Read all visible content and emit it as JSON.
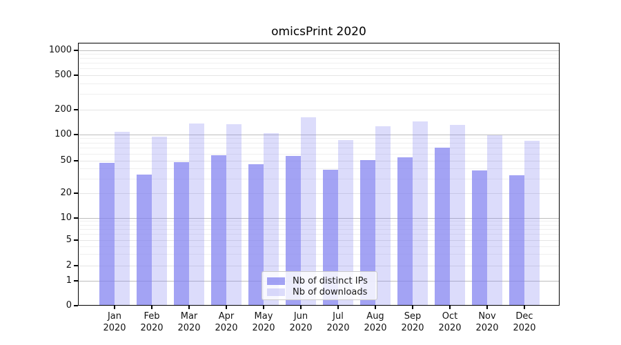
{
  "chart_data": {
    "type": "bar",
    "title": "omicsPrint 2020",
    "categories": [
      "Jan 2020",
      "Feb 2020",
      "Mar 2020",
      "Apr 2020",
      "May 2020",
      "Jun 2020",
      "Jul 2020",
      "Aug 2020",
      "Sep 2020",
      "Oct 2020",
      "Nov 2020",
      "Dec 2020"
    ],
    "series": [
      {
        "name": "Nb of distinct IPs",
        "color": "#a3a3f4",
        "fill_base": "#8080f0",
        "fill_opacity": 0.72,
        "values": [
          47,
          34,
          48,
          58,
          45,
          57,
          39,
          51,
          55,
          71,
          38,
          33
        ]
      },
      {
        "name": "Nb of downloads",
        "color": "#dcdcfb",
        "fill_base": "#8080f0",
        "fill_opacity": 0.28,
        "values": [
          108,
          94,
          135,
          133,
          103,
          161,
          86,
          126,
          145,
          132,
          99,
          85
        ]
      }
    ],
    "xlabel": "",
    "ylabel": "",
    "yscale": "symlog",
    "yticks": [
      0,
      1,
      2,
      5,
      10,
      20,
      50,
      100,
      200,
      500,
      1000
    ],
    "minor_yticks": [
      3,
      4,
      6,
      7,
      8,
      9,
      30,
      40,
      60,
      70,
      80,
      90,
      300,
      400,
      600,
      700,
      800,
      900
    ],
    "ylim": [
      0,
      1100
    ],
    "grid": true,
    "legend_position": "lower center",
    "decade_gridline_color": "#bdbdbd",
    "major_gridline_color": "#e4e4e4",
    "minor_gridline_color": "#efefef",
    "spine_color": "#000000",
    "text_color": "#111111"
  }
}
